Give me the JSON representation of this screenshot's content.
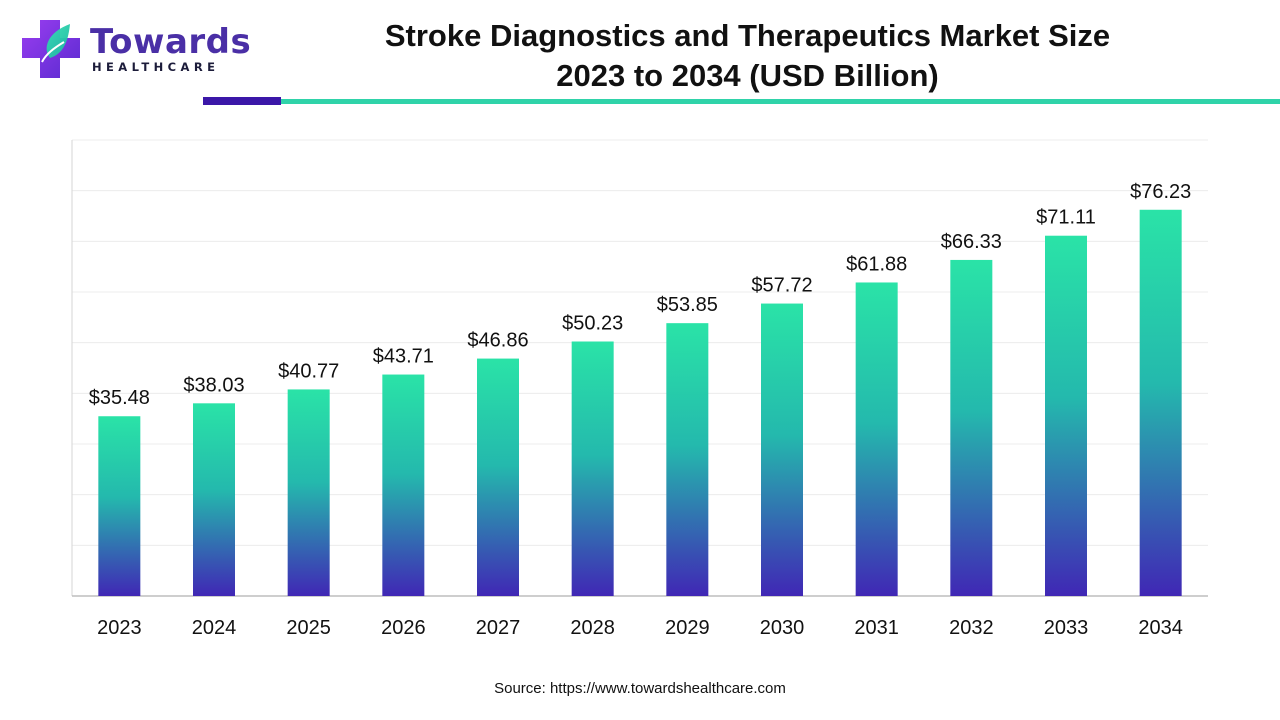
{
  "brand": {
    "name": "Towards",
    "tagline": "HEALTHCARE"
  },
  "title_line1": "Stroke Diagnostics and Therapeutics Market Size",
  "title_line2": "2023 to 2034 (USD Billion)",
  "source": "Source: https://www.towardshealthcare.com",
  "colors": {
    "bar_top": "#2ae3a7",
    "bar_bottom": "#4027b5",
    "accent_dark": "#3b17a8",
    "accent_teal": "#2fd3a9"
  },
  "chart_data": {
    "type": "bar",
    "categories": [
      "2023",
      "2024",
      "2025",
      "2026",
      "2027",
      "2028",
      "2029",
      "2030",
      "2031",
      "2032",
      "2033",
      "2034"
    ],
    "values": [
      35.48,
      38.03,
      40.77,
      43.71,
      46.86,
      50.23,
      53.85,
      57.72,
      61.88,
      66.33,
      71.11,
      76.23
    ],
    "value_labels": [
      "$35.48",
      "$38.03",
      "$40.77",
      "$43.71",
      "$46.86",
      "$50.23",
      "$53.85",
      "$57.72",
      "$61.88",
      "$66.33",
      "$71.11",
      "$76.23"
    ],
    "title": "Stroke Diagnostics and Therapeutics Market Size 2023 to 2034 (USD Billion)",
    "xlabel": "",
    "ylabel": "",
    "ylim": [
      0,
      90
    ],
    "grid": true,
    "legend": "none"
  }
}
